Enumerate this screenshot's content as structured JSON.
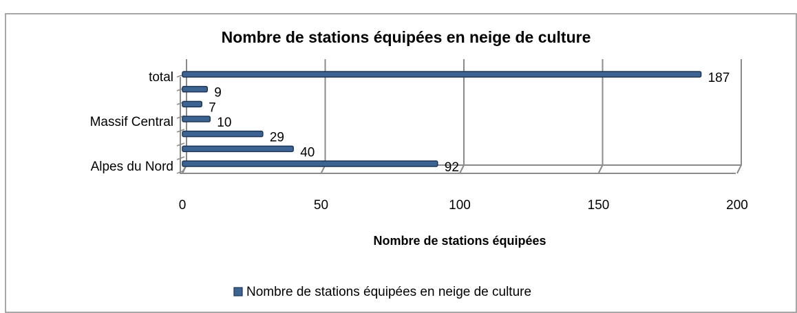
{
  "chart_data": {
    "type": "bar",
    "orientation": "horizontal",
    "title": "Nombre de stations équipées en neige de culture",
    "x_label": "Nombre de stations équipées",
    "categories": [
      "Alpes du Nord",
      null,
      null,
      "Massif Central",
      null,
      null,
      "total"
    ],
    "series": [
      {
        "name": "Nombre de stations équipées en neige de culture",
        "color": "#3c6391",
        "values": [
          92,
          40,
          29,
          10,
          7,
          9,
          187
        ]
      }
    ],
    "xlim": [
      0,
      200
    ],
    "xticks": [
      0,
      50,
      100,
      150,
      200
    ],
    "grid": true,
    "legend": "bottom"
  }
}
